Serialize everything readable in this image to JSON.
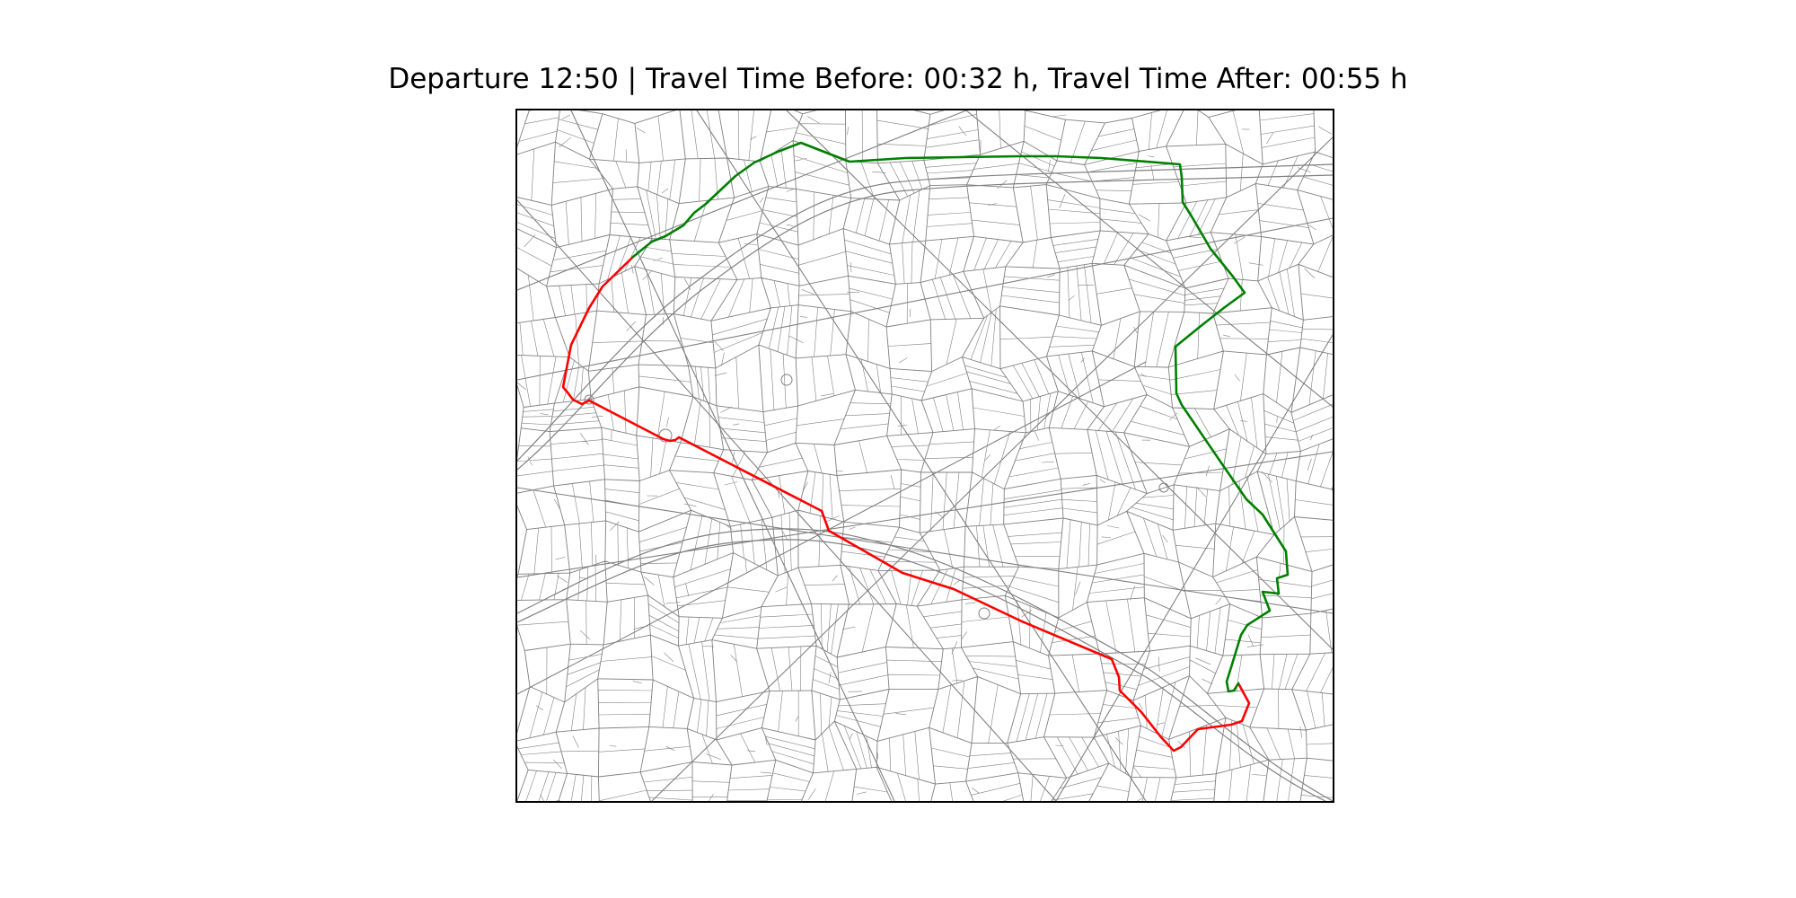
{
  "figure": {
    "title": "Departure 12:50 | Travel Time Before: 00:32 h, Travel Time After: 00:55 h"
  },
  "map": {
    "street_color": "#808080",
    "route_before": {
      "color": "#ff0000",
      "travel_time": "00:32 h"
    },
    "route_after": {
      "color": "#008000",
      "travel_time": "00:55 h"
    }
  }
}
